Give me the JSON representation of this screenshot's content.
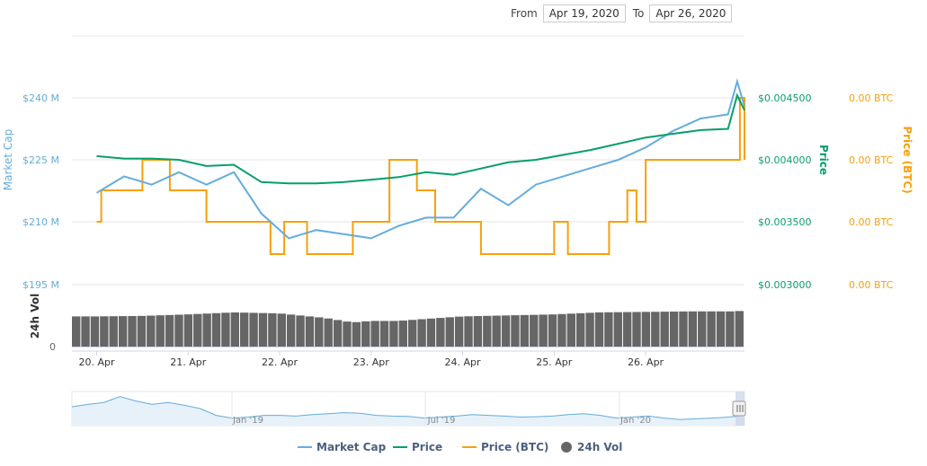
{
  "range_selector": {
    "from_label": "From",
    "from_value": "Apr 19, 2020",
    "to_label": "To",
    "to_value": "Apr 26, 2020"
  },
  "colors": {
    "market_cap": "#64acdd",
    "price": "#079e6b",
    "price_btc": "#f7a00c",
    "volume": "#666666",
    "grid": "#e6e6e6"
  },
  "chart_data": {
    "type": "line",
    "x_ticks": [
      "20. Apr",
      "21. Apr",
      "22. Apr",
      "23. Apr",
      "24. Apr",
      "25. Apr",
      "26. Apr"
    ],
    "x_range": [
      "2020-04-19T15:00",
      "2020-04-26T17:00"
    ],
    "axes": {
      "market_cap": {
        "label": "Market Cap",
        "ticks": [
          "$240 M",
          "$225 M",
          "$210 M",
          "$195 M"
        ],
        "range": [
          195,
          250
        ]
      },
      "price": {
        "label": "Price",
        "ticks": [
          "$0.004500",
          "$0.004000",
          "$0.003500",
          "$0.003000"
        ],
        "range": [
          0.003,
          0.0048
        ]
      },
      "price_btc": {
        "label": "Price (BTC)",
        "ticks": [
          "0.00 BTC",
          "0.00 BTC",
          "0.00 BTC",
          "0.00 BTC"
        ]
      },
      "volume": {
        "label": "24h Vol",
        "ticks": [
          "0"
        ]
      }
    },
    "series": [
      {
        "name": "Market Cap",
        "axis": "market_cap",
        "x": [
          0,
          0.3,
          0.6,
          0.9,
          1.2,
          1.5,
          1.8,
          2.1,
          2.4,
          2.7,
          3.0,
          3.3,
          3.6,
          3.9,
          4.2,
          4.5,
          4.8,
          5.1,
          5.4,
          5.7,
          6.0,
          6.3,
          6.6,
          6.9,
          7.0,
          7.08
        ],
        "values": [
          217,
          221,
          219,
          222,
          219,
          222,
          212,
          206,
          208,
          207,
          206,
          209,
          211,
          211,
          218,
          214,
          219,
          221,
          223,
          225,
          228,
          232,
          235,
          236,
          244,
          238
        ]
      },
      {
        "name": "Price",
        "axis": "price",
        "x": [
          0,
          0.3,
          0.6,
          0.9,
          1.2,
          1.5,
          1.8,
          2.1,
          2.4,
          2.7,
          3.0,
          3.3,
          3.6,
          3.9,
          4.2,
          4.5,
          4.8,
          5.1,
          5.4,
          5.7,
          6.0,
          6.3,
          6.6,
          6.9,
          7.0,
          7.08
        ],
        "values": [
          0.00403,
          0.00401,
          0.00401,
          0.004,
          0.00395,
          0.00396,
          0.00382,
          0.00381,
          0.00381,
          0.00382,
          0.00384,
          0.00386,
          0.0039,
          0.00388,
          0.00393,
          0.00398,
          0.004,
          0.00404,
          0.00408,
          0.00413,
          0.00418,
          0.00421,
          0.00424,
          0.00425,
          0.00452,
          0.0044
        ]
      },
      {
        "name": "Price (BTC)",
        "axis": "price_btc",
        "x": [
          0,
          0.05,
          0.5,
          0.8,
          1.2,
          1.9,
          2.05,
          2.3,
          2.8,
          3.2,
          3.5,
          3.7,
          4.0,
          4.2,
          4.7,
          5.0,
          5.15,
          5.6,
          5.8,
          5.9,
          6.0,
          6.55,
          6.6,
          7.0,
          7.03,
          7.08
        ],
        "values": [
          2,
          3,
          4,
          3,
          2,
          1,
          2,
          1,
          2,
          4,
          3,
          2,
          2,
          1,
          1,
          2,
          1,
          2,
          3,
          2,
          4,
          4,
          4,
          4,
          5,
          4
        ]
      },
      {
        "name": "24h Vol",
        "axis": "volume",
        "x": [
          0,
          0.5,
          1.0,
          1.5,
          2.0,
          2.5,
          2.8,
          3.0,
          3.3,
          3.6,
          4.0,
          4.5,
          5.0,
          5.5,
          6.0,
          6.5,
          7.0,
          7.08
        ],
        "values": [
          0.6,
          0.61,
          0.64,
          0.68,
          0.66,
          0.57,
          0.48,
          0.51,
          0.51,
          0.55,
          0.6,
          0.62,
          0.64,
          0.68,
          0.69,
          0.7,
          0.7,
          0.72
        ]
      }
    ],
    "legend": {
      "position": "bottom",
      "items": [
        "Market Cap",
        "Price",
        "Price (BTC)",
        "24h Vol"
      ]
    },
    "navigator": {
      "ticks": [
        "Jan '19",
        "Jul '19",
        "Jan '20"
      ],
      "values": [
        0.55,
        0.62,
        0.68,
        0.85,
        0.72,
        0.62,
        0.68,
        0.6,
        0.5,
        0.3,
        0.22,
        0.25,
        0.3,
        0.3,
        0.28,
        0.32,
        0.35,
        0.38,
        0.36,
        0.3,
        0.28,
        0.27,
        0.22,
        0.25,
        0.28,
        0.32,
        0.3,
        0.28,
        0.25,
        0.26,
        0.28,
        0.32,
        0.35,
        0.3,
        0.22,
        0.25,
        0.28,
        0.22,
        0.18,
        0.2,
        0.22,
        0.25,
        0.3
      ]
    },
    "grid": true
  }
}
